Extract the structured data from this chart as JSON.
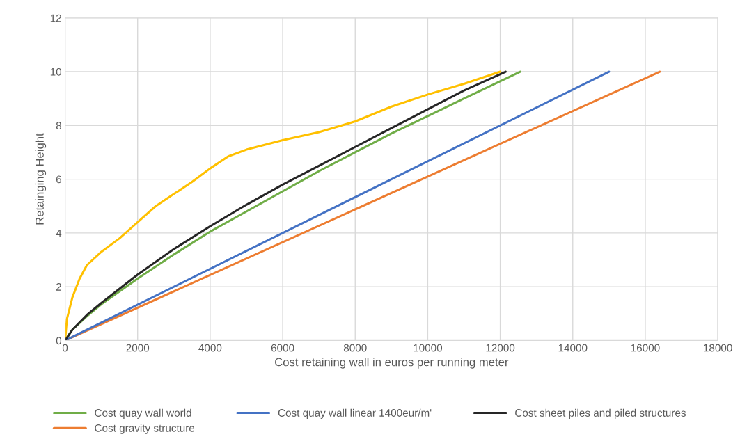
{
  "chart_data": {
    "type": "line",
    "xlabel": "Cost retaining wall in euros per running meter",
    "ylabel": "Retainging Height",
    "xlim": [
      0,
      18000
    ],
    "xticks": [
      0,
      2000,
      4000,
      6000,
      8000,
      10000,
      12000,
      14000,
      16000,
      18000
    ],
    "ylim": [
      0,
      12
    ],
    "yticks": [
      0,
      2,
      4,
      6,
      8,
      10,
      12
    ],
    "grid": true,
    "legend": "bottom",
    "marker": "none",
    "line_style": "solid",
    "series": [
      {
        "name": "Cost quay wall world",
        "color": "#70ad47",
        "x": [
          0,
          200,
          600,
          1000,
          2000,
          3000,
          4000,
          5000,
          6000,
          7000,
          8000,
          9000,
          10000,
          11000,
          12550
        ],
        "values": [
          0,
          0.4,
          0.9,
          1.35,
          2.3,
          3.2,
          4.05,
          4.8,
          5.55,
          6.3,
          7.0,
          7.7,
          8.35,
          9.0,
          10
        ]
      },
      {
        "color": "#ffc000",
        "x": [
          0,
          50,
          200,
          400,
          600,
          1000,
          1500,
          2000,
          2500,
          3000,
          3500,
          4000,
          4500,
          5000,
          6000,
          7000,
          8000,
          9000,
          10000,
          11000,
          12000
        ],
        "values": [
          0,
          0.8,
          1.6,
          2.3,
          2.8,
          3.3,
          3.8,
          4.4,
          5.0,
          5.45,
          5.9,
          6.4,
          6.85,
          7.1,
          7.45,
          7.75,
          8.15,
          8.7,
          9.15,
          9.55,
          10
        ]
      },
      {
        "name": "Cost gravity structure",
        "color": "#ed7d31",
        "x": [
          0,
          16400
        ],
        "values": [
          0,
          10
        ]
      },
      {
        "name": "Cost quay wall linear 1400eur/m'",
        "color": "#4472c4",
        "x": [
          0,
          15000
        ],
        "values": [
          0,
          10
        ]
      },
      {
        "name": "Cost sheet piles and piled structures",
        "color": "#262626",
        "x": [
          0,
          200,
          600,
          1000,
          2000,
          3000,
          4000,
          5000,
          6000,
          7000,
          8000,
          9000,
          10000,
          11000,
          12150
        ],
        "values": [
          0,
          0.4,
          0.95,
          1.4,
          2.45,
          3.4,
          4.25,
          5.05,
          5.8,
          6.5,
          7.2,
          7.9,
          8.6,
          9.3,
          10
        ]
      }
    ]
  }
}
